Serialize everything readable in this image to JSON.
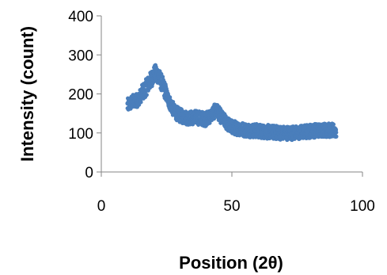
{
  "chart_data": {
    "type": "scatter",
    "title": "",
    "xlabel": "Position (2θ)",
    "ylabel": "Intensity (count)",
    "xlim": [
      0,
      100
    ],
    "ylim": [
      0,
      400
    ],
    "x_ticks": [
      0,
      50,
      100
    ],
    "x_tick_labels": [
      "0",
      "50",
      "100"
    ],
    "y_ticks": [
      0,
      100,
      200,
      300,
      400
    ],
    "y_tick_labels": [
      "0",
      "100",
      "200",
      "300",
      "400"
    ],
    "grid": false,
    "legend": "none",
    "series": [
      {
        "color": "#4a7ebb",
        "profile_x": [
          10,
          12,
          14,
          16,
          18,
          20,
          21,
          22,
          24,
          26,
          28,
          30,
          32,
          34,
          36,
          38,
          40,
          42,
          44,
          46,
          48,
          50,
          55,
          60,
          65,
          70,
          75,
          80,
          85,
          90
        ],
        "profile_y": [
          170,
          180,
          185,
          205,
          225,
          248,
          255,
          245,
          215,
          180,
          155,
          145,
          140,
          138,
          140,
          138,
          135,
          145,
          160,
          140,
          125,
          115,
          108,
          105,
          102,
          100,
          100,
          105,
          108,
          105
        ],
        "noise_amplitude": 18
      }
    ]
  }
}
